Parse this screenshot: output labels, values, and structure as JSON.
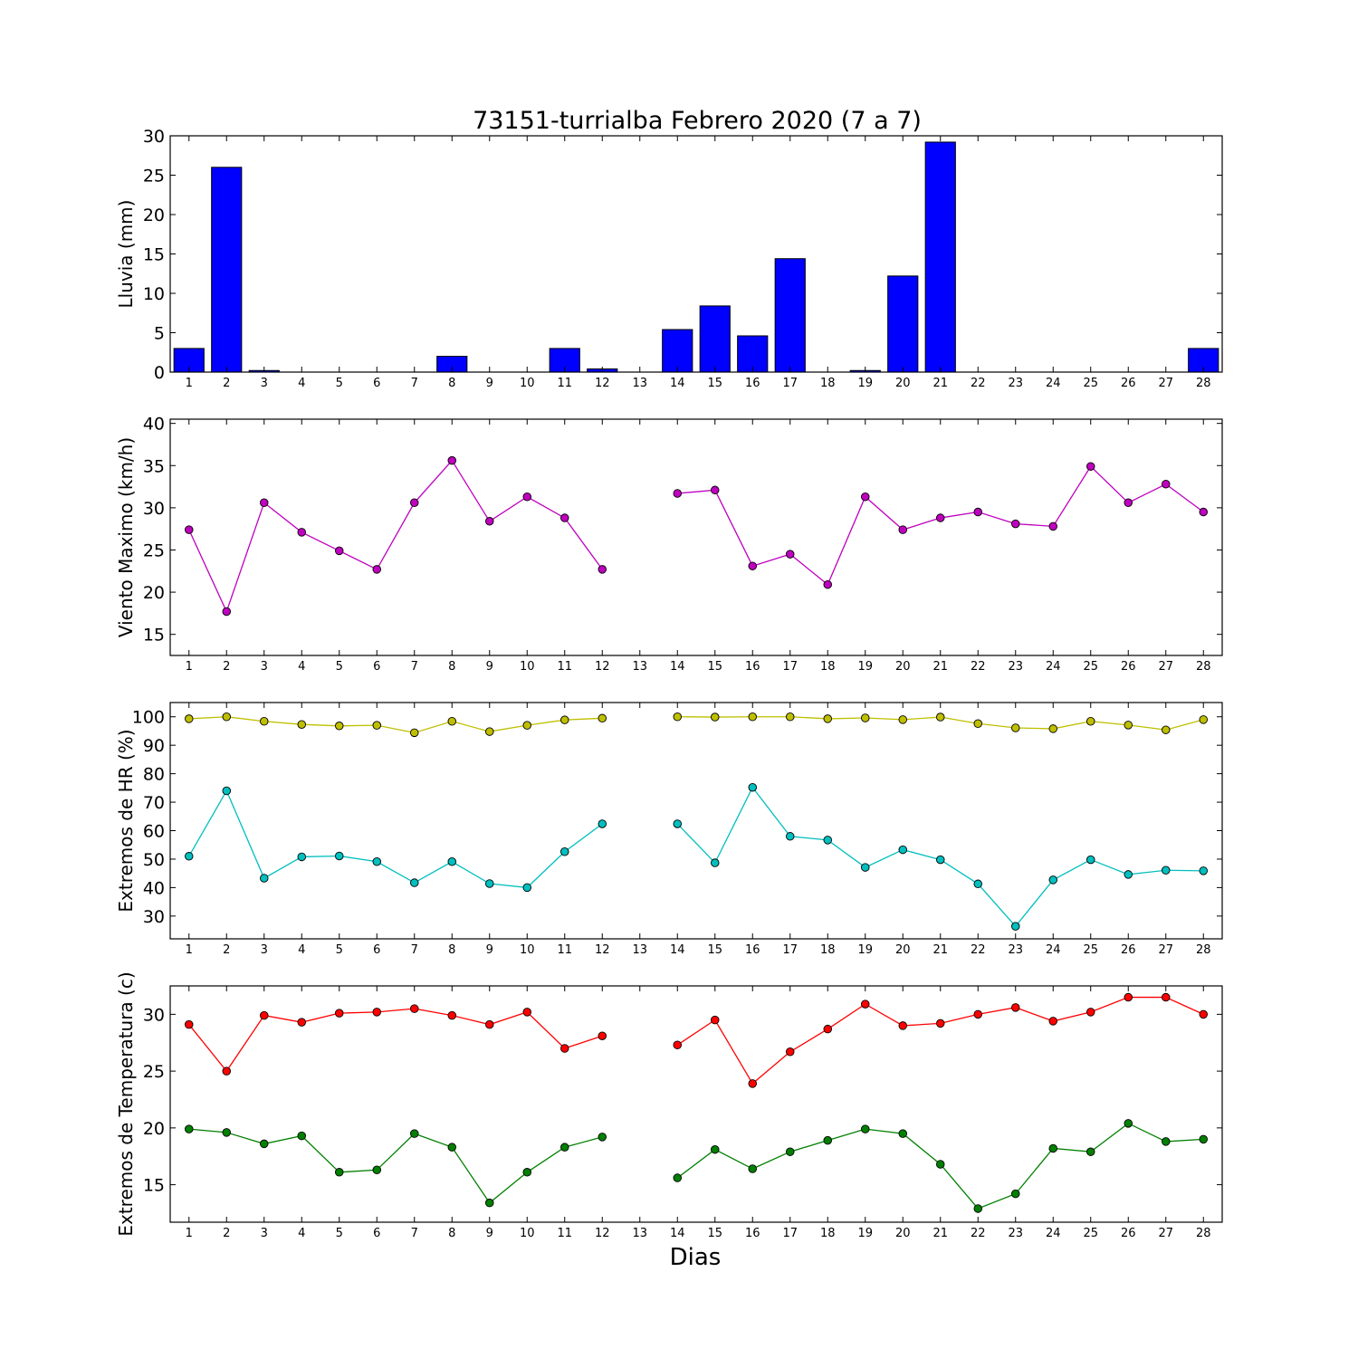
{
  "figure": {
    "title": "73151-turrialba Febrero 2020  (7 a 7)",
    "xlabel": "Dias"
  },
  "chart_data": [
    {
      "type": "bar",
      "categories": [
        "1",
        "2",
        "3",
        "4",
        "5",
        "6",
        "7",
        "8",
        "9",
        "10",
        "11",
        "12",
        "13",
        "14",
        "15",
        "16",
        "17",
        "18",
        "19",
        "20",
        "21",
        "22",
        "23",
        "24",
        "25",
        "26",
        "27",
        "28"
      ],
      "values": [
        3,
        26,
        0.2,
        0,
        0,
        0,
        0,
        2,
        0,
        0,
        3,
        0.4,
        0,
        5.4,
        8.4,
        4.6,
        14.4,
        0,
        0.2,
        12.2,
        29.2,
        0,
        0,
        0,
        0,
        0,
        0,
        3
      ],
      "ylabel": "Lluvia (mm)",
      "ylim": [
        0,
        30
      ],
      "yticks": [
        0,
        5,
        10,
        15,
        20,
        25,
        30
      ],
      "color": "#0000ff"
    },
    {
      "type": "line",
      "categories": [
        "1",
        "2",
        "3",
        "4",
        "5",
        "6",
        "7",
        "8",
        "9",
        "10",
        "11",
        "12",
        "13",
        "14",
        "15",
        "16",
        "17",
        "18",
        "19",
        "20",
        "21",
        "22",
        "23",
        "24",
        "25",
        "26",
        "27",
        "28"
      ],
      "series": [
        {
          "values": [
            27.4,
            17.7,
            30.6,
            27.1,
            24.9,
            22.7,
            30.6,
            35.6,
            28.4,
            31.3,
            28.8,
            22.7,
            null,
            31.7,
            32.1,
            23.1,
            24.5,
            20.9,
            31.3,
            27.4,
            28.8,
            29.5,
            28.1,
            27.8,
            34.9,
            30.6,
            32.8,
            29.5
          ],
          "color": "#bf00bf"
        }
      ],
      "ylabel": "Viento Maximo (km/h)",
      "ylim": [
        12.5,
        40.5
      ],
      "yticks": [
        15,
        20,
        25,
        30,
        35,
        40
      ]
    },
    {
      "type": "line",
      "categories": [
        "1",
        "2",
        "3",
        "4",
        "5",
        "6",
        "7",
        "8",
        "9",
        "10",
        "11",
        "12",
        "13",
        "14",
        "15",
        "16",
        "17",
        "18",
        "19",
        "20",
        "21",
        "22",
        "23",
        "24",
        "25",
        "26",
        "27",
        "28"
      ],
      "series": [
        {
          "values": [
            99.3,
            100,
            98.4,
            97.3,
            96.8,
            97,
            94.4,
            98.4,
            94.8,
            97,
            98.9,
            99.5,
            null,
            100,
            99.9,
            100,
            100,
            99.3,
            99.6,
            99,
            99.9,
            97.6,
            96.1,
            95.8,
            98.4,
            97.1,
            95.4,
            99
          ],
          "color": "#bfbf00"
        },
        {
          "values": [
            51,
            74,
            43.3,
            50.8,
            51.1,
            49.1,
            41.7,
            49.1,
            41.4,
            40,
            52.6,
            62.4,
            null,
            62.4,
            48.7,
            75.2,
            58,
            56.7,
            47.1,
            53.3,
            49.8,
            41.3,
            26.4,
            42.7,
            49.8,
            44.6,
            46.1,
            45.9
          ],
          "color": "#00bfbf"
        }
      ],
      "ylabel": "Extremos de HR (%)",
      "ylim": [
        22,
        105
      ],
      "yticks": [
        30,
        40,
        50,
        60,
        70,
        80,
        90,
        100
      ]
    },
    {
      "type": "line",
      "categories": [
        "1",
        "2",
        "3",
        "4",
        "5",
        "6",
        "7",
        "8",
        "9",
        "10",
        "11",
        "12",
        "13",
        "14",
        "15",
        "16",
        "17",
        "18",
        "19",
        "20",
        "21",
        "22",
        "23",
        "24",
        "25",
        "26",
        "27",
        "28"
      ],
      "series": [
        {
          "values": [
            29.1,
            25,
            29.9,
            29.3,
            30.1,
            30.2,
            30.5,
            29.9,
            29.1,
            30.2,
            27,
            28.1,
            null,
            27.3,
            29.5,
            23.9,
            26.7,
            28.7,
            30.9,
            29,
            29.2,
            30,
            30.6,
            29.4,
            30.2,
            31.5,
            31.5,
            30
          ],
          "color": "#ff0000"
        },
        {
          "values": [
            19.9,
            19.6,
            18.6,
            19.3,
            16.1,
            16.3,
            19.5,
            18.3,
            13.4,
            16.1,
            18.3,
            19.2,
            null,
            15.6,
            18.1,
            16.4,
            17.9,
            18.9,
            19.9,
            19.5,
            16.8,
            12.9,
            14.2,
            18.2,
            17.9,
            20.4,
            18.8,
            19
          ],
          "color": "#008000"
        }
      ],
      "ylabel": "Extremos de Temperatura (c)",
      "ylim": [
        11.7,
        32.5
      ],
      "yticks": [
        15,
        20,
        25,
        30
      ]
    }
  ]
}
